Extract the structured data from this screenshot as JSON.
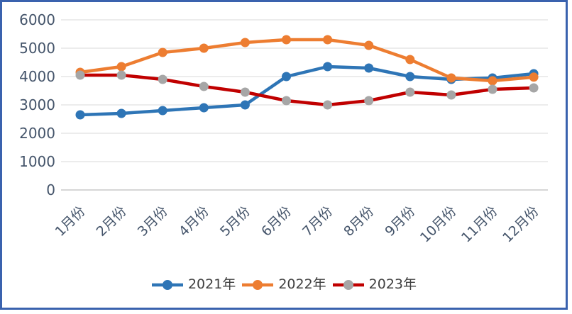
{
  "frame": {
    "border_color": "#3A62AE",
    "background_color": "#FFFFFF"
  },
  "chart_data": {
    "type": "line",
    "title": "",
    "categories": [
      "1月份",
      "2月份",
      "3月份",
      "4月份",
      "5月份",
      "6月份",
      "7月份",
      "8月份",
      "9月份",
      "10月份",
      "11月份",
      "12月份"
    ],
    "series": [
      {
        "name": "2021年",
        "line_color": "#2E75B6",
        "marker_color": "#2E75B6",
        "values": [
          2650,
          2700,
          2800,
          2900,
          3000,
          4000,
          4350,
          4300,
          4000,
          3900,
          3950,
          4100
        ]
      },
      {
        "name": "2022年",
        "line_color": "#ED7D31",
        "marker_color": "#ED7D31",
        "values": [
          4150,
          4350,
          4850,
          5000,
          5200,
          5300,
          5300,
          5100,
          4600,
          3950,
          3850,
          3980
        ]
      },
      {
        "name": "2023年",
        "line_color": "#C00000",
        "marker_color": "#A6A6A6",
        "values": [
          4050,
          4050,
          3900,
          3650,
          3450,
          3150,
          3000,
          3150,
          3450,
          3350,
          3550,
          3600
        ]
      }
    ],
    "y_axis": {
      "min": 0,
      "max": 6000,
      "step": 1000,
      "tick_labels": [
        "0",
        "1000",
        "2000",
        "3000",
        "4000",
        "5000",
        "6000"
      ]
    },
    "x_axis": {
      "label_rotation_deg": -45
    },
    "grid": "horizontal",
    "legend_position": "bottom",
    "colors": {
      "gridline": "#D9D9D9",
      "baseline": "#C9C9C9",
      "axis_text": "#44546A",
      "legend_text": "#404040"
    }
  }
}
